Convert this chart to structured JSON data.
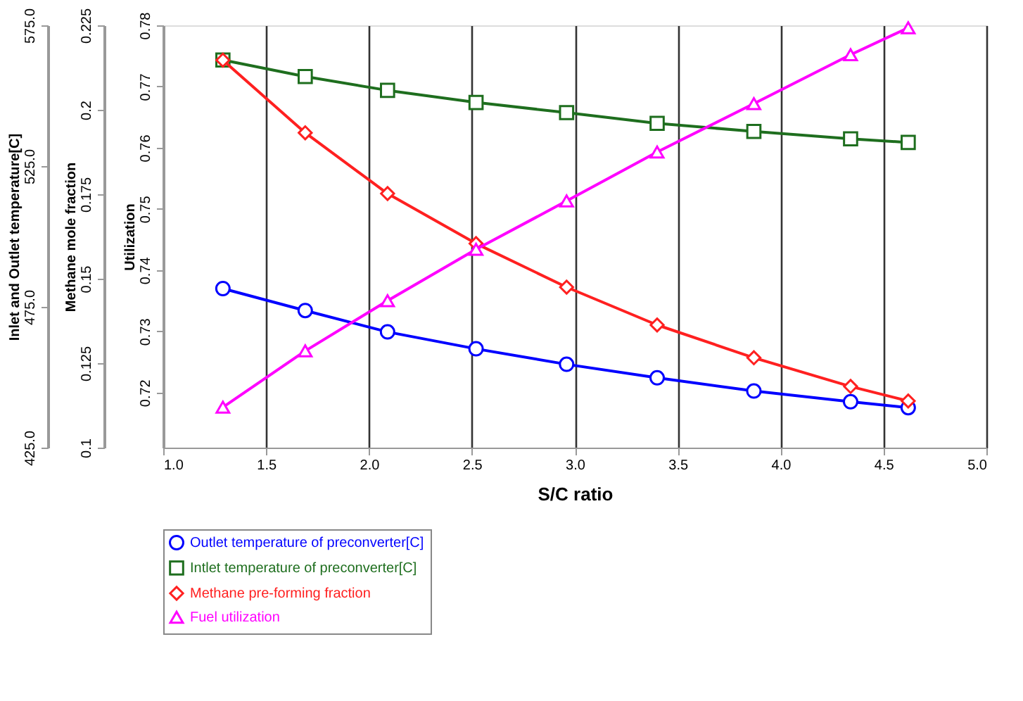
{
  "chart_data": {
    "type": "line",
    "xlabel": "S/C ratio",
    "ylabel": "Inlet and Outlet temperature[C]",
    "y2label": "Methane mole fraction",
    "y3label": "Utilization",
    "x": [
      1.29,
      1.69,
      2.09,
      2.52,
      2.96,
      3.4,
      3.87,
      4.34,
      4.62
    ],
    "series": [
      {
        "name": "Outlet temperature of preconverter[C]",
        "color": "#0000ff",
        "marker": "circle",
        "axis": "y",
        "values": [
          481.5,
          473.7,
          466.1,
          460.1,
          454.6,
          449.8,
          445.1,
          441.3,
          439.2
        ]
      },
      {
        "name": "Intlet temperature of preconverter[C]",
        "color": "#1e6e1e",
        "marker": "square",
        "axis": "y",
        "values": [
          562.7,
          556.8,
          551.9,
          547.6,
          544.0,
          540.2,
          537.3,
          534.7,
          533.4
        ]
      },
      {
        "name": "Methane pre-forming fraction",
        "color": "#ff2020",
        "marker": "diamond",
        "axis": "y2",
        "values": [
          0.2147,
          0.1932,
          0.1752,
          0.1604,
          0.1475,
          0.1363,
          0.1266,
          0.1181,
          0.1138
        ]
      },
      {
        "name": "Fuel utilization",
        "color": "#ff00ff",
        "marker": "triangle",
        "axis": "y3",
        "values": [
          0.7176,
          0.7268,
          0.735,
          0.7434,
          0.7513,
          0.7593,
          0.7672,
          0.7752,
          0.7796
        ]
      }
    ],
    "xlim": [
      1.0,
      5.0
    ],
    "xticks": [
      {
        "value": 1,
        "label": "1.0"
      },
      1.5,
      {
        "value": 2,
        "label": "2.0"
      },
      2.5,
      {
        "value": 3,
        "label": "3.0"
      },
      3.5,
      {
        "value": 4,
        "label": "4.0"
      },
      4.5,
      {
        "value": 5,
        "label": "5.0"
      }
    ],
    "ylim": [
      425,
      575
    ],
    "yticks": [
      {
        "value": 425,
        "label": "425.0"
      },
      {
        "value": 475,
        "label": "475.0"
      },
      {
        "value": 525,
        "label": "525.0"
      },
      {
        "value": 575,
        "label": "575.0"
      }
    ],
    "y2lim": [
      0.1,
      0.225
    ],
    "y2ticks": [
      0.1,
      0.125,
      0.15,
      0.175,
      0.2,
      0.225
    ],
    "y3lim": [
      0.711,
      0.78
    ],
    "y3ticks": [
      0.72,
      0.73,
      0.74,
      0.75,
      0.76,
      0.77,
      0.78
    ],
    "grid": "x",
    "legend": "bottom",
    "line_style": "solid"
  }
}
